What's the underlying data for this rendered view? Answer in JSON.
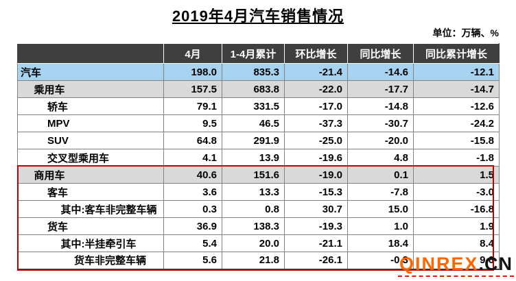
{
  "page": {
    "title": "2019年4月汽车销售情况",
    "unit_note": "单位：万辆、%"
  },
  "watermark": {
    "main": "QINREX",
    "suffix": ".CN",
    "main_color": "#FF6600"
  },
  "table": {
    "columns": [
      "",
      "4月",
      "1-4月累计",
      "环比增长",
      "同比增长",
      "同比累计增长"
    ],
    "rows": [
      {
        "label": "汽车",
        "indent": 0,
        "style": "blue",
        "values": [
          "198.0",
          "835.3",
          "-21.4",
          "-14.6",
          "-12.1"
        ]
      },
      {
        "label": "乘用车",
        "indent": 1,
        "style": "gray",
        "values": [
          "157.5",
          "683.8",
          "-22.0",
          "-17.7",
          "-14.7"
        ]
      },
      {
        "label": "轿车",
        "indent": 2,
        "style": "",
        "values": [
          "79.1",
          "331.5",
          "-17.0",
          "-14.8",
          "-12.6"
        ]
      },
      {
        "label": "MPV",
        "indent": 2,
        "style": "",
        "values": [
          "9.5",
          "46.5",
          "-37.3",
          "-30.7",
          "-24.2"
        ]
      },
      {
        "label": "SUV",
        "indent": 2,
        "style": "",
        "values": [
          "64.8",
          "291.9",
          "-25.0",
          "-20.0",
          "-15.8"
        ]
      },
      {
        "label": "交叉型乘用车",
        "indent": 2,
        "style": "",
        "values": [
          "4.1",
          "13.9",
          "-19.6",
          "4.8",
          "-1.8"
        ]
      },
      {
        "label": "商用车",
        "indent": 1,
        "style": "gray",
        "values": [
          "40.6",
          "151.6",
          "-19.0",
          "0.1",
          "1.5"
        ]
      },
      {
        "label": "客车",
        "indent": 2,
        "style": "",
        "values": [
          "3.6",
          "13.3",
          "-15.3",
          "-7.8",
          "-3.0"
        ]
      },
      {
        "label": "其中:客车非完整车辆",
        "indent": 3,
        "style": "",
        "values": [
          "0.3",
          "0.8",
          "30.7",
          "15.0",
          "-16.8"
        ]
      },
      {
        "label": "货车",
        "indent": 2,
        "style": "",
        "values": [
          "36.9",
          "138.3",
          "-19.3",
          "1.0",
          "1.9"
        ]
      },
      {
        "label": "其中:半挂牵引车",
        "indent": 3,
        "style": "",
        "values": [
          "5.4",
          "20.0",
          "-21.1",
          "18.4",
          "8.4"
        ]
      },
      {
        "label": "货车非完整车辆",
        "indent": 4,
        "style": "",
        "values": [
          "5.6",
          "21.8",
          "-26.1",
          "-0.3",
          "9.6"
        ]
      }
    ],
    "highlight_box": {
      "first_row_index": 6,
      "last_row_index": 11,
      "border_color": "#C00000"
    },
    "colors": {
      "header_bg": "#3F3F3F",
      "blue_row": "#A8D3F0",
      "gray_row": "#D9D9D9"
    }
  },
  "chart_data": {
    "type": "table",
    "title": "2019年4月汽车销售情况",
    "unit": "万辆、%",
    "columns": [
      "4月",
      "1-4月累计",
      "环比增长",
      "同比增长",
      "同比累计增长"
    ],
    "rows": [
      {
        "label": "汽车",
        "values": [
          198.0,
          835.3,
          -21.4,
          -14.6,
          -12.1
        ]
      },
      {
        "label": "乘用车",
        "values": [
          157.5,
          683.8,
          -22.0,
          -17.7,
          -14.7
        ]
      },
      {
        "label": "轿车",
        "values": [
          79.1,
          331.5,
          -17.0,
          -14.8,
          -12.6
        ]
      },
      {
        "label": "MPV",
        "values": [
          9.5,
          46.5,
          -37.3,
          -30.7,
          -24.2
        ]
      },
      {
        "label": "SUV",
        "values": [
          64.8,
          291.9,
          -25.0,
          -20.0,
          -15.8
        ]
      },
      {
        "label": "交叉型乘用车",
        "values": [
          4.1,
          13.9,
          -19.6,
          4.8,
          -1.8
        ]
      },
      {
        "label": "商用车",
        "values": [
          40.6,
          151.6,
          -19.0,
          0.1,
          1.5
        ]
      },
      {
        "label": "客车",
        "values": [
          3.6,
          13.3,
          -15.3,
          -7.8,
          -3.0
        ]
      },
      {
        "label": "其中:客车非完整车辆",
        "values": [
          0.3,
          0.8,
          30.7,
          15.0,
          -16.8
        ]
      },
      {
        "label": "货车",
        "values": [
          36.9,
          138.3,
          -19.3,
          1.0,
          1.9
        ]
      },
      {
        "label": "其中:半挂牵引车",
        "values": [
          5.4,
          20.0,
          -21.1,
          18.4,
          8.4
        ]
      },
      {
        "label": "货车非完整车辆",
        "values": [
          5.6,
          21.8,
          -26.1,
          -0.3,
          9.6
        ]
      }
    ]
  }
}
